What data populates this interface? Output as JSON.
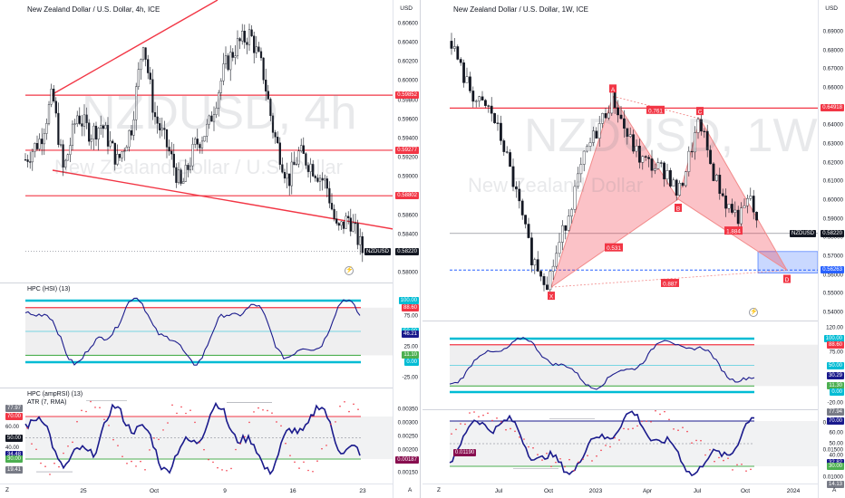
{
  "left": {
    "title": "New Zealand Dollar / U.S. Dollar, 4h, ICE",
    "watermark_symbol": "NZDUSD, 4h",
    "watermark_name": "New Zealand Dollar / U.S. Dollar",
    "currency": "USD",
    "price_axis": [
      "0.60600",
      "0.60400",
      "0.60200",
      "0.60000",
      "0.59800",
      "0.59600",
      "0.59400",
      "0.59200",
      "0.59000",
      "0.58800",
      "0.58600",
      "0.58400",
      "0.58200",
      "0.58000"
    ],
    "level_tags": [
      "0.59852",
      "0.59277",
      "0.58802"
    ],
    "symbol_tag": "NZDUSD",
    "last_price": "0.58220",
    "hsi_label": "HPC (HSI) (13)",
    "hsi_axis": [
      "100.00",
      "88.60",
      "75.00",
      "50.00",
      "46.21",
      "25.00",
      "11.10",
      "0.00",
      "-25.00"
    ],
    "hsi_tags": [
      "100.00",
      "88.60",
      "50.00",
      "46.21",
      "11.10",
      "0.00"
    ],
    "amp_label": "HPC (ampRSI) (13)",
    "atr_label": "ATR (7, RMA)",
    "amp_axis": [
      "0.00350",
      "0.00300",
      "0.00250",
      "0.00200",
      "0.00150"
    ],
    "amp_tags": [
      "77.97",
      "70.00",
      "60.00",
      "50.00",
      "40.00",
      "34.48",
      "30.00",
      "19.41"
    ],
    "atr_tag": "0.00187",
    "x_axis": [
      "25",
      "Oct",
      "9",
      "16",
      "23"
    ],
    "corner": "A"
  },
  "right": {
    "title": "New Zealand Dollar / U.S. Dollar, 1W, ICE",
    "watermark_symbol": "NZDUSD, 1W",
    "watermark_name": "New Zealand Dollar",
    "currency": "USD",
    "price_axis": [
      "0.69000",
      "0.68000",
      "0.67000",
      "0.66000",
      "0.65000",
      "0.64000",
      "0.63000",
      "0.62000",
      "0.61000",
      "0.60000",
      "0.59000",
      "0.58000",
      "0.57000",
      "0.56000",
      "0.55000",
      "0.54000"
    ],
    "level_tag": "0.64918",
    "symbol_tag": "NZDUSD",
    "last_price": "0.58220",
    "target_tag": "0.56263",
    "pattern_points": [
      "X",
      "A",
      "B",
      "C",
      "D"
    ],
    "ratios": [
      "0.761",
      "0.531",
      "1.884",
      "0.887"
    ],
    "hsi_axis": [
      "120.00",
      "100.00",
      "88.60",
      "75.00",
      "50.00",
      "30.29",
      "11.30",
      "0.00",
      "-20.00"
    ],
    "hsi_tags": [
      "100.00",
      "88.60",
      "50.00",
      "30.29",
      "11.30",
      "0.00"
    ],
    "amp_axis": [
      "0.02000",
      "0.01500",
      "0.01000"
    ],
    "amp_tags": [
      "77.94",
      "70.00",
      "60.00",
      "50.00",
      "40.00",
      "32.82",
      "30.00",
      "14.13"
    ],
    "atr_tag": "0.01190",
    "x_axis": [
      "Jul",
      "Oct",
      "2023",
      "Apr",
      "Jul",
      "Oct",
      "2024"
    ],
    "corner_left": "Z",
    "corner": "A"
  },
  "colors": {
    "up": "#131722",
    "down": "#131722",
    "red": "#f23645",
    "cyan": "#00bcd4",
    "green": "#4caf50",
    "navy": "#1a1a8c",
    "pattern": "#f28b8b",
    "blue": "#2962ff"
  }
}
